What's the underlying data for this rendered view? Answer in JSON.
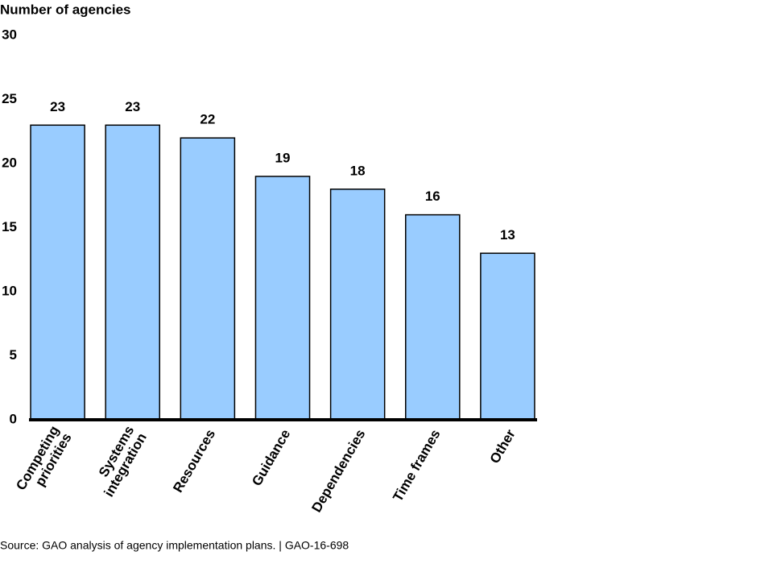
{
  "chart_data": {
    "type": "bar",
    "y_axis_label": "Number of agencies",
    "categories": [
      [
        "Competing",
        "priorities"
      ],
      [
        "Systems",
        "integration"
      ],
      [
        "Resources"
      ],
      [
        "Guidance"
      ],
      [
        "Dependencies"
      ],
      [
        "Time frames"
      ],
      [
        "Other"
      ]
    ],
    "values": [
      23,
      23,
      22,
      19,
      18,
      16,
      13
    ],
    "color": "#99ccff",
    "ylim": [
      0,
      30
    ],
    "yticks": [
      0,
      5,
      10,
      15,
      20,
      25,
      30
    ],
    "grid": false,
    "source": "Source: GAO analysis of agency implementation plans. | GAO-16-698"
  }
}
